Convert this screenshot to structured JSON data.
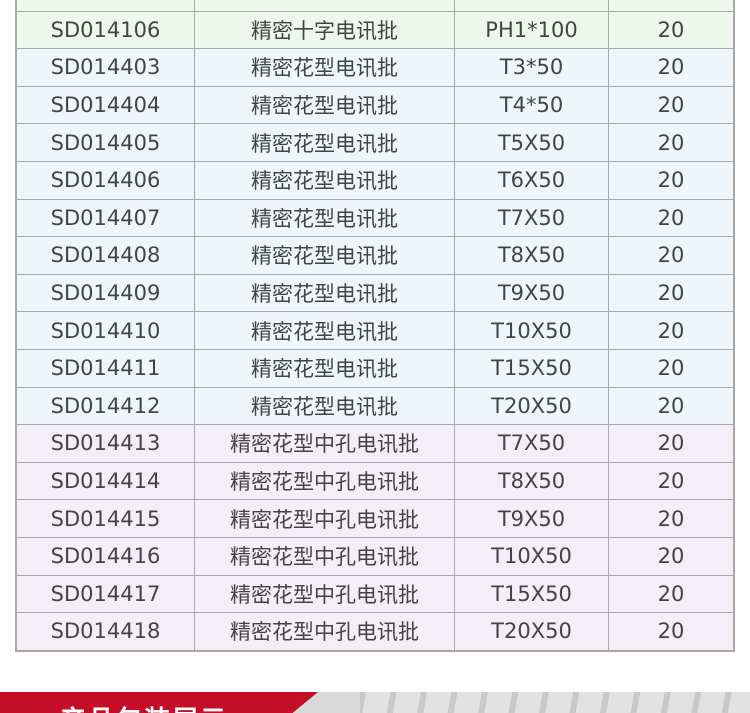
{
  "colors": {
    "green_row": "#eef7ec",
    "blue_row": "#eef6fc",
    "purple_row": "#f3eef7",
    "banner_red": "#c40d26"
  },
  "rows": [
    {
      "code": "SD014106",
      "name": "精密十字电讯批",
      "spec": "PH1*100",
      "qty": "20",
      "group": "g"
    },
    {
      "code": "SD014403",
      "name": "精密花型电讯批",
      "spec": "T3*50",
      "qty": "20",
      "group": "b"
    },
    {
      "code": "SD014404",
      "name": "精密花型电讯批",
      "spec": "T4*50",
      "qty": "20",
      "group": "b"
    },
    {
      "code": "SD014405",
      "name": "精密花型电讯批",
      "spec": "T5X50",
      "qty": "20",
      "group": "b"
    },
    {
      "code": "SD014406",
      "name": "精密花型电讯批",
      "spec": "T6X50",
      "qty": "20",
      "group": "b"
    },
    {
      "code": "SD014407",
      "name": "精密花型电讯批",
      "spec": "T7X50",
      "qty": "20",
      "group": "b"
    },
    {
      "code": "SD014408",
      "name": "精密花型电讯批",
      "spec": "T8X50",
      "qty": "20",
      "group": "b"
    },
    {
      "code": "SD014409",
      "name": "精密花型电讯批",
      "spec": "T9X50",
      "qty": "20",
      "group": "b"
    },
    {
      "code": "SD014410",
      "name": "精密花型电讯批",
      "spec": "T10X50",
      "qty": "20",
      "group": "b"
    },
    {
      "code": "SD014411",
      "name": "精密花型电讯批",
      "spec": "T15X50",
      "qty": "20",
      "group": "b"
    },
    {
      "code": "SD014412",
      "name": "精密花型电讯批",
      "spec": "T20X50",
      "qty": "20",
      "group": "b"
    },
    {
      "code": "SD014413",
      "name": "精密花型中孔电讯批",
      "spec": "T7X50",
      "qty": "20",
      "group": "p"
    },
    {
      "code": "SD014414",
      "name": "精密花型中孔电讯批",
      "spec": "T8X50",
      "qty": "20",
      "group": "p"
    },
    {
      "code": "SD014415",
      "name": "精密花型中孔电讯批",
      "spec": "T9X50",
      "qty": "20",
      "group": "p"
    },
    {
      "code": "SD014416",
      "name": "精密花型中孔电讯批",
      "spec": "T10X50",
      "qty": "20",
      "group": "p"
    },
    {
      "code": "SD014417",
      "name": "精密花型中孔电讯批",
      "spec": "T15X50",
      "qty": "20",
      "group": "p"
    },
    {
      "code": "SD014418",
      "name": "精密花型中孔电讯批",
      "spec": "T20X50",
      "qty": "20",
      "group": "p"
    }
  ],
  "banner": {
    "title": "产品包装展示"
  }
}
